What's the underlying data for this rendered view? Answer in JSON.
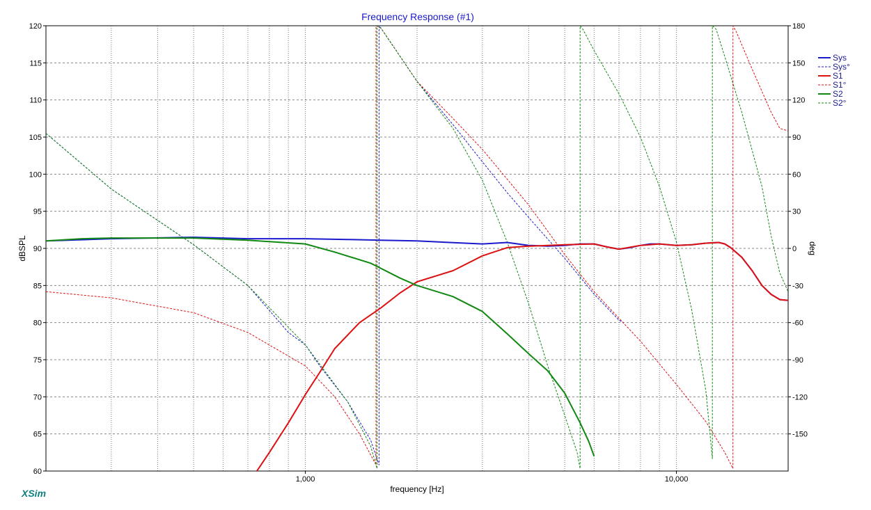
{
  "chart_data": {
    "type": "line",
    "title": "Frequency Response (#1)",
    "xlabel": "frequency [Hz]",
    "ylabel": "dBSPL",
    "y2label": "deg",
    "xscale": "log",
    "xlim": [
      200,
      20000
    ],
    "ylim": [
      60,
      120
    ],
    "y2lim": [
      -180,
      180
    ],
    "x_tick_labels": [
      {
        "value": 1000,
        "label": "1,000"
      },
      {
        "value": 10000,
        "label": "10,000"
      }
    ],
    "y_ticks": [
      60,
      65,
      70,
      75,
      80,
      85,
      90,
      95,
      100,
      105,
      110,
      115,
      120
    ],
    "y2_ticks": [
      -150,
      -120,
      -90,
      -60,
      -30,
      0,
      30,
      60,
      90,
      120,
      150,
      180
    ],
    "grid": true,
    "legend_position": "right",
    "series": [
      {
        "name": "Sys",
        "axis": "left",
        "color": "#1a1acc",
        "style": "solid",
        "width": 2,
        "x": [
          200,
          300,
          500,
          700,
          1000,
          1300,
          1600,
          2000,
          3000,
          3500,
          4000,
          4500,
          5000,
          5500,
          6000,
          6500,
          7000,
          7500,
          8000,
          8500,
          9000,
          10000,
          11000,
          12000,
          13000,
          13500,
          14000,
          15000,
          16000,
          17000,
          18000,
          19000,
          20000
        ],
        "y": [
          91.0,
          91.3,
          91.5,
          91.3,
          91.3,
          91.2,
          91.1,
          91.0,
          90.6,
          90.8,
          90.4,
          90.3,
          90.4,
          90.6,
          90.6,
          90.2,
          89.9,
          90.1,
          90.4,
          90.6,
          90.6,
          90.4,
          90.5,
          90.7,
          90.8,
          90.6,
          90.1,
          88.8,
          87.0,
          85.0,
          83.8,
          83.1,
          83.0
        ]
      },
      {
        "name": "Sys°",
        "axis": "right",
        "color": "#1a1acc",
        "style": "dashed",
        "width": 1,
        "x": [
          200,
          300,
          500,
          700,
          900,
          1000,
          1100,
          1300,
          1500,
          1580,
          1580,
          1600,
          2000,
          2500,
          3000,
          3500,
          4000,
          5000,
          6000,
          7000,
          7200
        ],
        "y": [
          93,
          48,
          3,
          -30,
          -68,
          -78,
          -96,
          -124,
          -155,
          -175,
          180,
          178,
          135,
          100,
          70,
          45,
          25,
          -8,
          -37,
          -58,
          -60
        ]
      },
      {
        "name": "S1",
        "axis": "left",
        "color": "#dd1111",
        "style": "solid",
        "width": 2,
        "x": [
          740,
          800,
          900,
          1000,
          1100,
          1200,
          1400,
          1600,
          1800,
          2000,
          2500,
          3000,
          3500,
          4000,
          5000,
          6000,
          6500,
          7000,
          8000,
          9000,
          10000,
          11000,
          12000,
          13000,
          13500,
          14000,
          15000,
          16000,
          17000,
          18000,
          19000,
          20000
        ],
        "y": [
          60.0,
          62.5,
          66.5,
          70.3,
          73.5,
          76.5,
          80.0,
          82.0,
          84.0,
          85.5,
          87.0,
          89.0,
          90.1,
          90.3,
          90.5,
          90.6,
          90.2,
          89.9,
          90.4,
          90.6,
          90.4,
          90.5,
          90.7,
          90.8,
          90.6,
          90.1,
          88.8,
          87.0,
          85.0,
          83.8,
          83.1,
          83.0
        ]
      },
      {
        "name": "S1°",
        "axis": "right",
        "color": "#dd1111",
        "style": "dashed",
        "width": 1,
        "x": [
          200,
          300,
          500,
          700,
          1000,
          1200,
          1400,
          1550,
          1550,
          1600,
          2000,
          2500,
          3000,
          4000,
          5000,
          6000,
          8000,
          10000,
          12000,
          13500,
          14200,
          14200,
          14500,
          16000,
          18000,
          19000,
          20000
        ],
        "y": [
          -35,
          -40,
          -52,
          -68,
          -95,
          -120,
          -150,
          -175,
          180,
          178,
          135,
          105,
          80,
          35,
          -5,
          -35,
          -75,
          -110,
          -140,
          -165,
          -178,
          180,
          175,
          145,
          110,
          97,
          95
        ]
      },
      {
        "name": "S2",
        "axis": "left",
        "color": "#118811",
        "style": "solid",
        "width": 2,
        "x": [
          200,
          250,
          300,
          500,
          700,
          1000,
          1200,
          1500,
          1800,
          2000,
          2500,
          3000,
          3500,
          4000,
          4500,
          5000,
          5500,
          5800,
          6000
        ],
        "y": [
          91.0,
          91.3,
          91.4,
          91.4,
          91.1,
          90.6,
          89.5,
          88.0,
          86.0,
          85.0,
          83.5,
          81.5,
          78.5,
          75.8,
          73.5,
          70.5,
          66.5,
          64.0,
          62.0
        ]
      },
      {
        "name": "S2°",
        "axis": "right",
        "color": "#118811",
        "style": "dashed",
        "width": 1,
        "x": [
          200,
          300,
          500,
          700,
          1000,
          1300,
          1500,
          1560,
          1560,
          1600,
          2000,
          2500,
          3000,
          3500,
          4000,
          4500,
          5000,
          5400,
          5500,
          5500,
          5600,
          6000,
          7000,
          8000,
          9000,
          10000,
          11000,
          12000,
          12500,
          12500,
          12800,
          13500,
          15000,
          17000,
          18000,
          19000,
          20000
        ],
        "y": [
          93,
          48,
          3,
          -30,
          -78,
          -124,
          -160,
          -178,
          180,
          178,
          135,
          97,
          55,
          5,
          -45,
          -95,
          -135,
          -165,
          -178,
          180,
          177,
          160,
          125,
          90,
          50,
          5,
          -50,
          -115,
          -170,
          180,
          177,
          155,
          110,
          50,
          10,
          -20,
          -35
        ]
      }
    ]
  },
  "legend": [
    {
      "label": "Sys",
      "color": "#1a1acc",
      "style": "solid"
    },
    {
      "label": "Sys°",
      "color": "#1a1acc",
      "style": "dashed"
    },
    {
      "label": "S1",
      "color": "#dd1111",
      "style": "solid"
    },
    {
      "label": "S1°",
      "color": "#dd1111",
      "style": "dashed"
    },
    {
      "label": "S2",
      "color": "#118811",
      "style": "solid"
    },
    {
      "label": "S2°",
      "color": "#118811",
      "style": "dashed"
    }
  ],
  "brand": "XSim"
}
